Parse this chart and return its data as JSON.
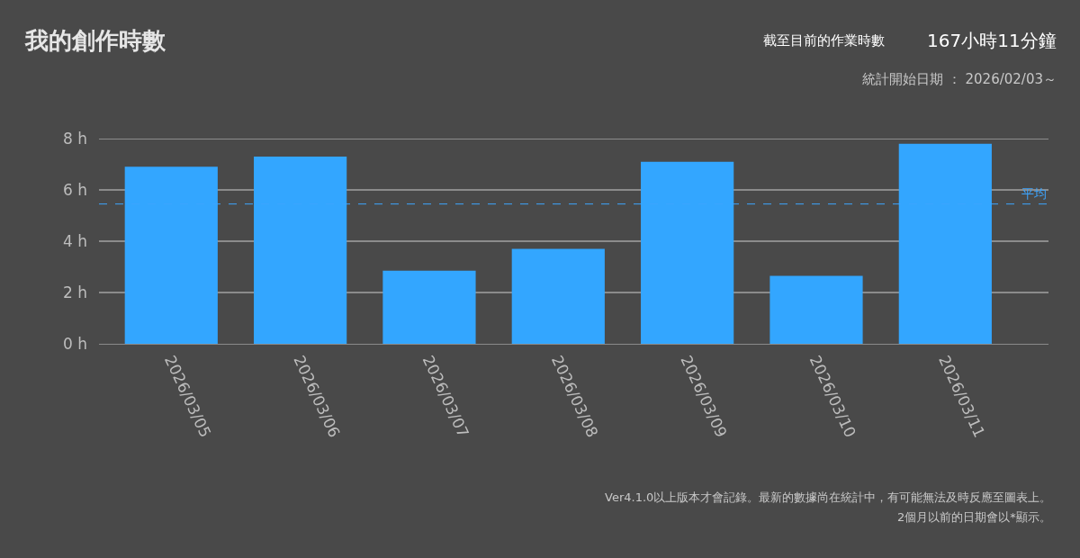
{
  "chart_data": {
    "type": "bar",
    "title": "我的創作時數",
    "annotations": [
      "截至目前的作業時數",
      "167小時11分鐘",
      "統計開始日期 ： 2026/02/03～",
      "Ver4.1.0以上版本才會記錄。最新的數據尚在統計中，有可能無法及時反應至圖表上。",
      "2個月以前的日期會以*顯示。"
    ],
    "categories": [
      "2026/03/05",
      "2026/03/06",
      "2026/03/07",
      "2026/03/08",
      "2026/03/09",
      "2026/03/10",
      "2026/03/11"
    ],
    "values": [
      6.9,
      7.3,
      2.85,
      3.7,
      7.1,
      2.65,
      7.8
    ],
    "color": "#33a6ff",
    "ylim": [
      0,
      8
    ],
    "yticks": [
      {
        "value": 0,
        "label": "0 h"
      },
      {
        "value": 2,
        "label": "2 h"
      },
      {
        "value": 4,
        "label": "4 h"
      },
      {
        "value": 6,
        "label": "6 h"
      },
      {
        "value": 8,
        "label": "8 h"
      }
    ],
    "ref_lines": [
      {
        "axis": "y",
        "value": 5.45,
        "label": "平均",
        "color": "#3da5ff",
        "line_style": "dashed"
      }
    ],
    "grid": "y"
  }
}
